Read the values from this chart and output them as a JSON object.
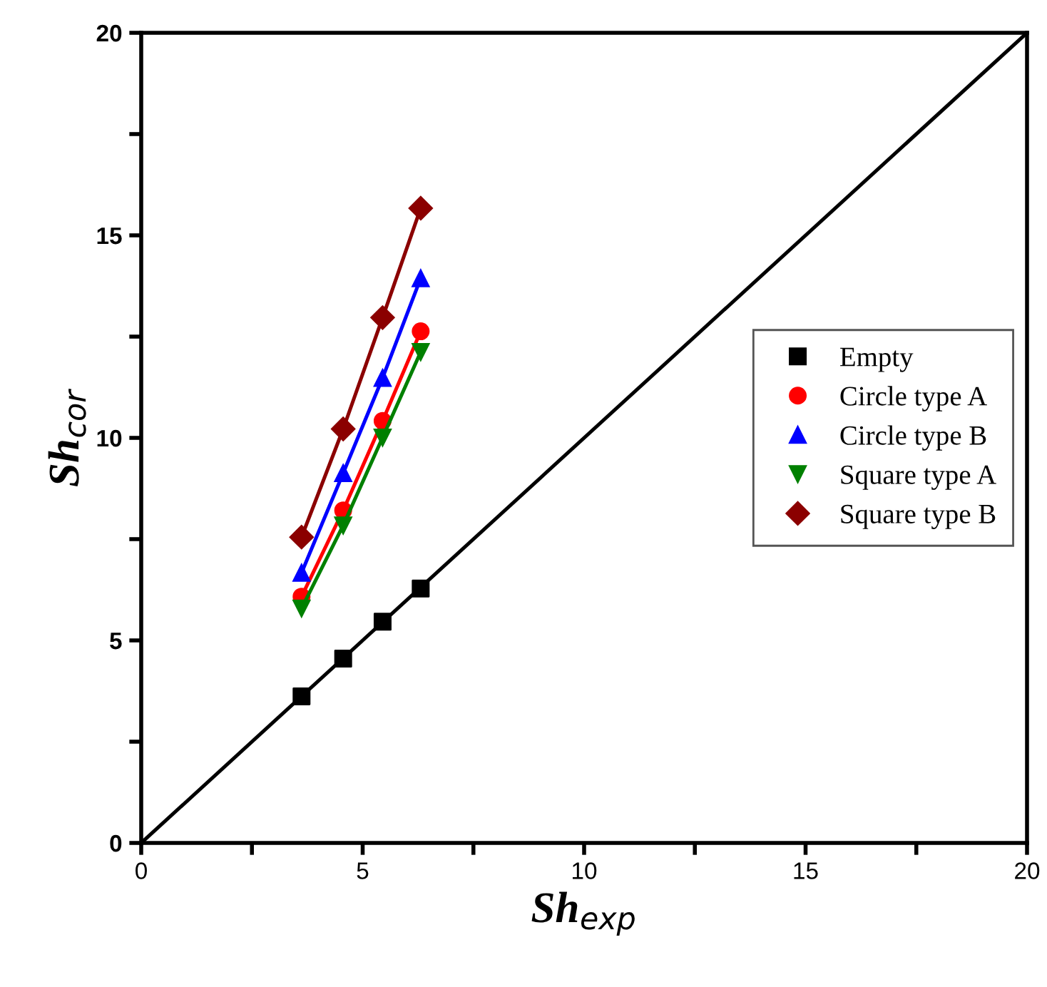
{
  "chart_data": {
    "type": "scatter",
    "xlabel": "Sh$_{exp}$",
    "ylabel": "Sh$_{cor}$",
    "xlim": [
      0,
      20
    ],
    "ylim": [
      0,
      20
    ],
    "xticks": [
      0,
      {
        "value": 2.5,
        "label": null
      },
      5,
      {
        "value": 7.5,
        "label": null
      },
      10,
      {
        "value": 12.5,
        "label": null
      },
      15,
      {
        "value": 17.5,
        "label": null
      },
      20
    ],
    "yticks": [
      0,
      {
        "value": 2.5,
        "label": null
      },
      5,
      {
        "value": 7.5,
        "label": null
      },
      10,
      {
        "value": 12.5,
        "label": null
      },
      15,
      {
        "value": 17.5,
        "label": null
      },
      20
    ],
    "x": [
      3.62,
      4.56,
      5.45,
      6.31
    ],
    "grid": false,
    "legend": "center right",
    "line_style": "solid",
    "series": [
      {
        "name": "Empty",
        "color": "#000000",
        "marker": "square",
        "values": [
          3.62,
          4.55,
          5.46,
          6.28
        ]
      },
      {
        "name": "Circle type A",
        "color": "#ff0000",
        "marker": "circle",
        "type": "line",
        "values": [
          6.08,
          8.21,
          10.42,
          12.63
        ]
      },
      {
        "name": "Circle type B",
        "color": "#0000ff",
        "marker": "triangle",
        "type": "line",
        "values": [
          6.67,
          9.13,
          11.48,
          13.94
        ]
      },
      {
        "name": "Square type A",
        "color": "#008000",
        "marker": "triangle_down",
        "type": "line",
        "values": [
          5.79,
          7.84,
          10.01,
          12.12
        ]
      },
      {
        "name": "Square type B",
        "color": "#8b0000",
        "marker": "diamond",
        "type": "line",
        "values": [
          7.55,
          10.22,
          12.97,
          15.67
        ]
      },
      {
        "type": "line",
        "color": "#000000",
        "marker": "none",
        "x": [
          0,
          20
        ],
        "values": [
          0,
          20
        ]
      }
    ]
  }
}
